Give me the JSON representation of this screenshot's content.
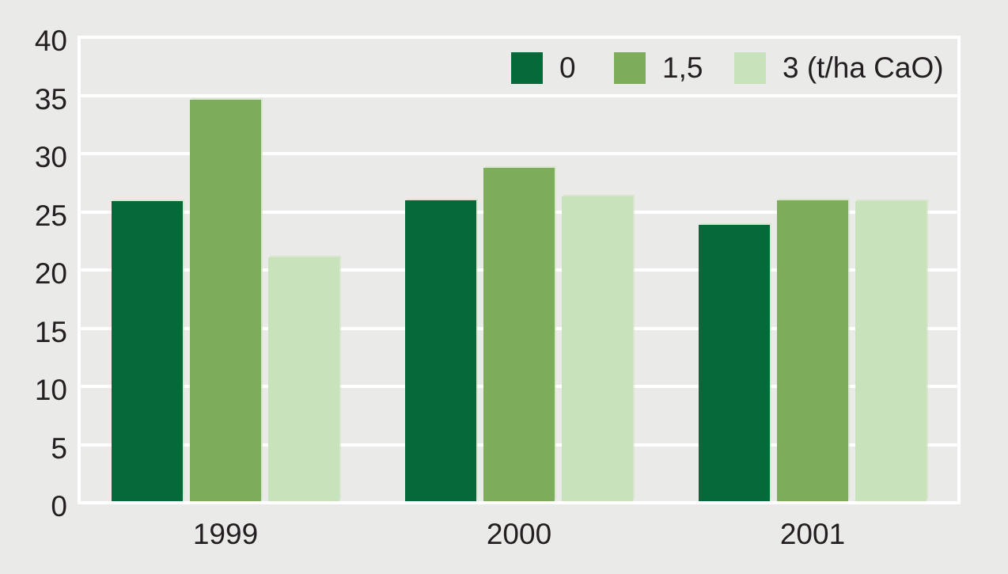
{
  "chart_data": {
    "type": "bar",
    "title": "",
    "xlabel": "",
    "ylabel": "",
    "categories": [
      "1999",
      "2000",
      "2001"
    ],
    "series": [
      {
        "name": "0",
        "color": "#06693A",
        "values": [
          25.9,
          26.0,
          23.9
        ]
      },
      {
        "name": "1,5",
        "color": "#7DAD5B",
        "values": [
          34.6,
          28.8,
          26.0
        ]
      },
      {
        "name": "3 (t/ha CaO)",
        "color": "#C8E2BB",
        "values": [
          21.1,
          26.3,
          25.9
        ]
      }
    ],
    "ylim": [
      0,
      40
    ],
    "ytick_step": 5,
    "yticks": [
      "0",
      "5",
      "10",
      "15",
      "20",
      "25",
      "30",
      "35",
      "40"
    ],
    "grid": true,
    "legend_position": "top-right"
  },
  "colors": {
    "background": "#EAEAE9",
    "gridline": "#FFFFFF",
    "text": "#231F20"
  }
}
